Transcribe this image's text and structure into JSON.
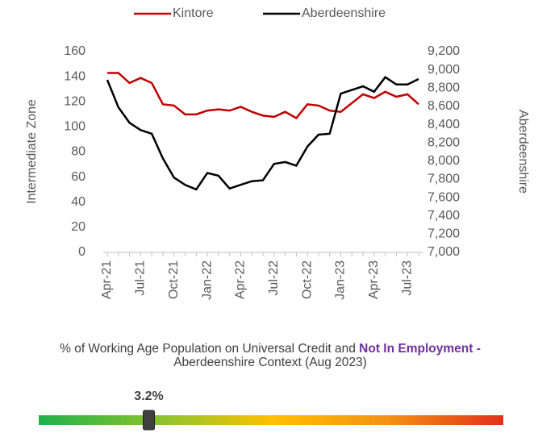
{
  "chart_data": {
    "type": "line",
    "categories": [
      "Apr-21",
      null,
      null,
      "Jul-21",
      null,
      null,
      "Oct-21",
      null,
      null,
      "Jan-22",
      null,
      null,
      "Apr-22",
      null,
      null,
      "Jul-22",
      null,
      null,
      "Oct-22",
      null,
      null,
      "Jan-23",
      null,
      null,
      "Apr-23",
      null,
      null,
      "Jul-23",
      null
    ],
    "series": [
      {
        "name": "Kintore",
        "color": "#c00000",
        "axis": "y",
        "values": [
          143,
          143,
          135,
          139,
          135,
          118,
          117,
          110,
          110,
          113,
          114,
          113,
          116,
          112,
          109,
          108,
          112,
          107,
          118,
          117,
          113,
          112,
          119,
          126,
          123,
          128,
          124,
          126,
          118
        ]
      },
      {
        "name": "Aberdeenshire",
        "color": "#000000",
        "axis": "y2",
        "values": [
          8890,
          8590,
          8420,
          8340,
          8300,
          8030,
          7820,
          7740,
          7690,
          7870,
          7840,
          7700,
          7740,
          7780,
          7790,
          7970,
          7990,
          7950,
          8160,
          8290,
          8300,
          8740,
          8780,
          8820,
          8760,
          8920,
          8840,
          8840,
          8900
        ]
      }
    ],
    "ylabel": "Intermediate Zone",
    "y2label": "Aberdeenshire",
    "ylim": [
      0,
      160
    ],
    "yticks": [
      0,
      20,
      40,
      60,
      80,
      100,
      120,
      140,
      160
    ],
    "y2lim": [
      7000,
      9200
    ],
    "y2ticks": [
      {
        "value": 7000,
        "label": "7,000"
      },
      {
        "value": 7200,
        "label": "7,200"
      },
      {
        "value": 7400,
        "label": "7,400"
      },
      {
        "value": 7600,
        "label": "7,600"
      },
      {
        "value": 7800,
        "label": "7,800"
      },
      {
        "value": 8000,
        "label": "8,000"
      },
      {
        "value": 8200,
        "label": "8,200"
      },
      {
        "value": 8400,
        "label": "8,400"
      },
      {
        "value": 8600,
        "label": "8,600"
      },
      {
        "value": 8800,
        "label": "8,800"
      },
      {
        "value": 9000,
        "label": "9,000"
      },
      {
        "value": 9200,
        "label": "9,200"
      }
    ],
    "legend": "top",
    "grid": false
  },
  "gauge": {
    "title_parts": [
      "% of Working Age Population on Universal Credit and ",
      "Not In Employment -",
      " Aberdeenshire Context (Aug 2023)"
    ],
    "value": 3.2,
    "value_label": "3.2%",
    "xlim": [
      0,
      13.5
    ]
  }
}
